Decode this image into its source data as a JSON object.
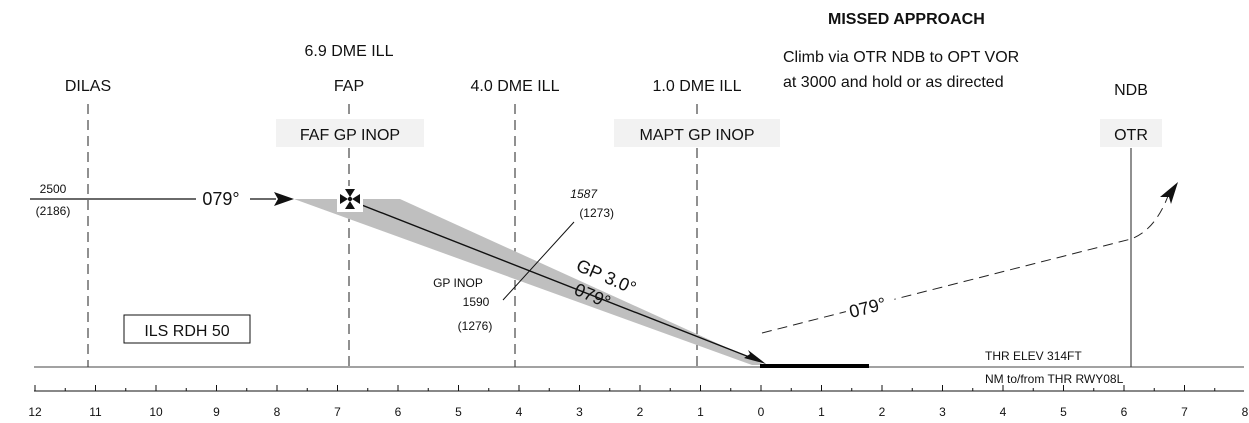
{
  "missed_approach": {
    "title": "MISSED APPROACH",
    "line1": "Climb via OTR NDB to OPT VOR",
    "line2": "at 3000 and hold or as directed",
    "track": "079°"
  },
  "fixes": {
    "dilas": "DILAS",
    "fap_dme": "6.9 DME ILL",
    "fap": "FAP",
    "faf": "FAF GP INOP",
    "dme4": "4.0 DME ILL",
    "dme1": "1.0 DME ILL",
    "mapt": "MAPT GP INOP",
    "ndb": "NDB",
    "otr": "OTR"
  },
  "altitudes": {
    "initial": "2500",
    "initial_height": "(2186)",
    "dme4_alt": "1587",
    "dme4_height": "(1273)",
    "gp_inop": "GP INOP",
    "gp_inop_alt": "1590",
    "gp_inop_height": "(1276)"
  },
  "inbound_track": "079°",
  "glidepath": {
    "label": "GP 3.0°",
    "track": "079°"
  },
  "ils_box": "ILS RDH 50",
  "threshold": {
    "elev": "THR ELEV 314FT",
    "scale_note": "NM to/from THR RWY08L"
  },
  "distance_scale": {
    "left_ticks": [
      "12",
      "11",
      "10",
      "9",
      "8",
      "7",
      "6",
      "5",
      "4",
      "3",
      "2",
      "1"
    ],
    "right_ticks": [
      "0",
      "1",
      "2",
      "3",
      "4",
      "5",
      "6",
      "7",
      "8"
    ]
  }
}
